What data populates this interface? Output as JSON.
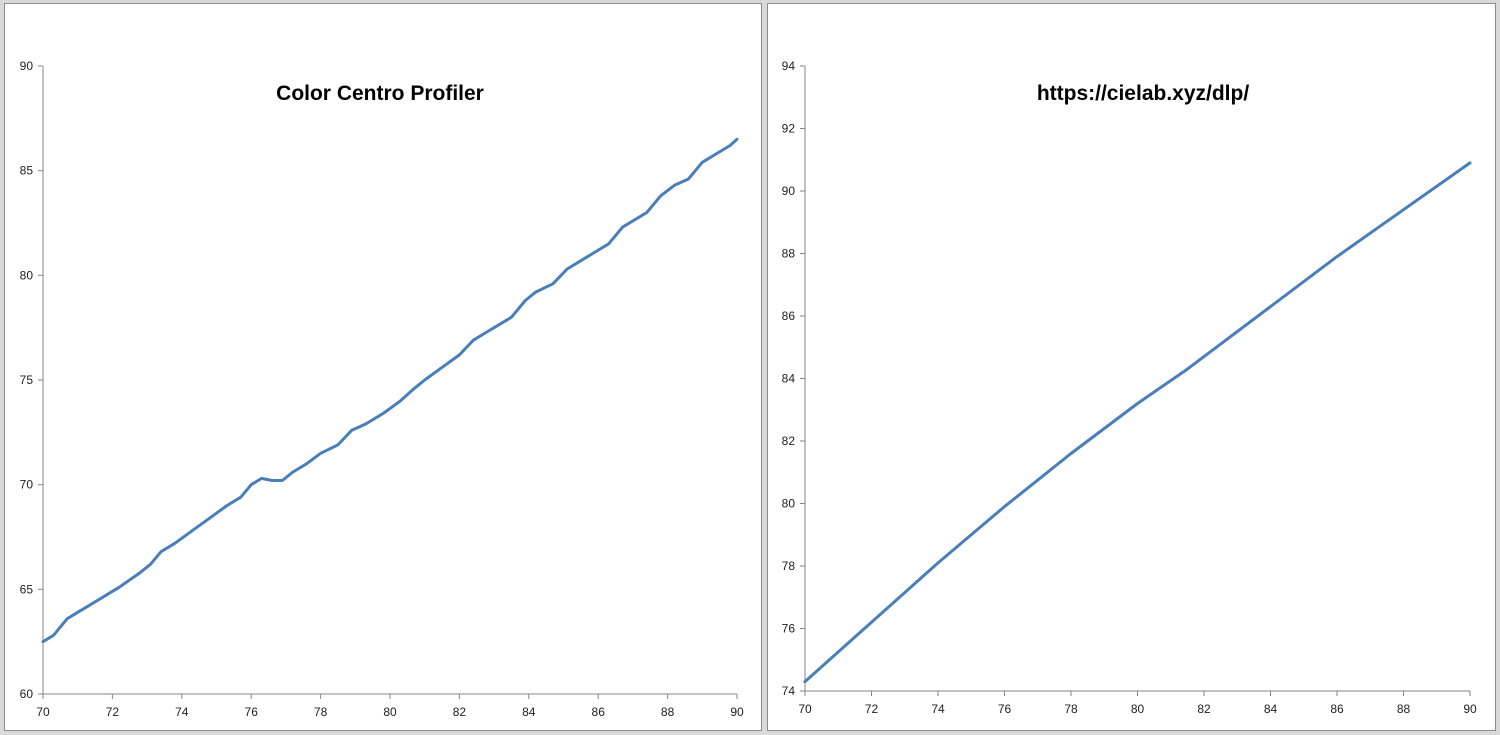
{
  "colors": {
    "line": "#4a7ebb",
    "axis": "#868686",
    "background": "#ffffff"
  },
  "chart_data": [
    {
      "type": "line",
      "title": "Color Centro Profiler",
      "xlabel": "",
      "ylabel": "",
      "xlim": [
        70,
        90
      ],
      "ylim": [
        60,
        90
      ],
      "x_ticks": [
        70,
        72,
        74,
        76,
        78,
        80,
        82,
        84,
        86,
        88,
        90
      ],
      "y_ticks": [
        60,
        65,
        70,
        75,
        80,
        85,
        90
      ],
      "grid": false,
      "series": [
        {
          "x": [
            70,
            70.3,
            70.7,
            71.2,
            71.7,
            72.2,
            72.8,
            73.1,
            73.4,
            73.8,
            74.3,
            74.8,
            75.3,
            75.7,
            76.0,
            76.3,
            76.6,
            76.9,
            77.2,
            77.6,
            78.0,
            78.5,
            78.9,
            79.3,
            79.8,
            80.3,
            80.7,
            81.0,
            81.5,
            82.0,
            82.4,
            82.7,
            83.1,
            83.5,
            83.9,
            84.2,
            84.7,
            85.1,
            85.5,
            85.9,
            86.3,
            86.7,
            87.0,
            87.4,
            87.8,
            88.2,
            88.6,
            89.0,
            89.4,
            89.8,
            90
          ],
          "y": [
            62.5,
            62.8,
            63.6,
            64.1,
            64.6,
            65.1,
            65.8,
            66.2,
            66.8,
            67.2,
            67.8,
            68.4,
            69.0,
            69.4,
            70.0,
            70.3,
            70.2,
            70.2,
            70.6,
            71.0,
            71.5,
            71.9,
            72.6,
            72.9,
            73.4,
            74.0,
            74.6,
            75.0,
            75.6,
            76.2,
            76.9,
            77.2,
            77.6,
            78.0,
            78.8,
            79.2,
            79.6,
            80.3,
            80.7,
            81.1,
            81.5,
            82.3,
            82.6,
            83.0,
            83.8,
            84.3,
            84.6,
            85.4,
            85.8,
            86.2,
            86.5
          ]
        }
      ]
    },
    {
      "type": "line",
      "title": "https://cielab.xyz/dlp/",
      "xlabel": "",
      "ylabel": "",
      "xlim": [
        70,
        90
      ],
      "ylim": [
        74,
        94
      ],
      "x_ticks": [
        70,
        72,
        74,
        76,
        78,
        80,
        82,
        84,
        86,
        88,
        90
      ],
      "y_ticks": [
        74,
        76,
        78,
        80,
        82,
        84,
        86,
        88,
        90,
        92,
        94
      ],
      "grid": false,
      "series": [
        {
          "x": [
            70,
            72,
            74,
            76,
            78,
            80,
            81.5,
            82,
            84,
            86,
            88,
            90
          ],
          "y": [
            74.3,
            76.2,
            78.1,
            79.9,
            81.6,
            83.2,
            84.3,
            84.7,
            86.3,
            87.9,
            89.4,
            90.9
          ]
        }
      ]
    }
  ]
}
